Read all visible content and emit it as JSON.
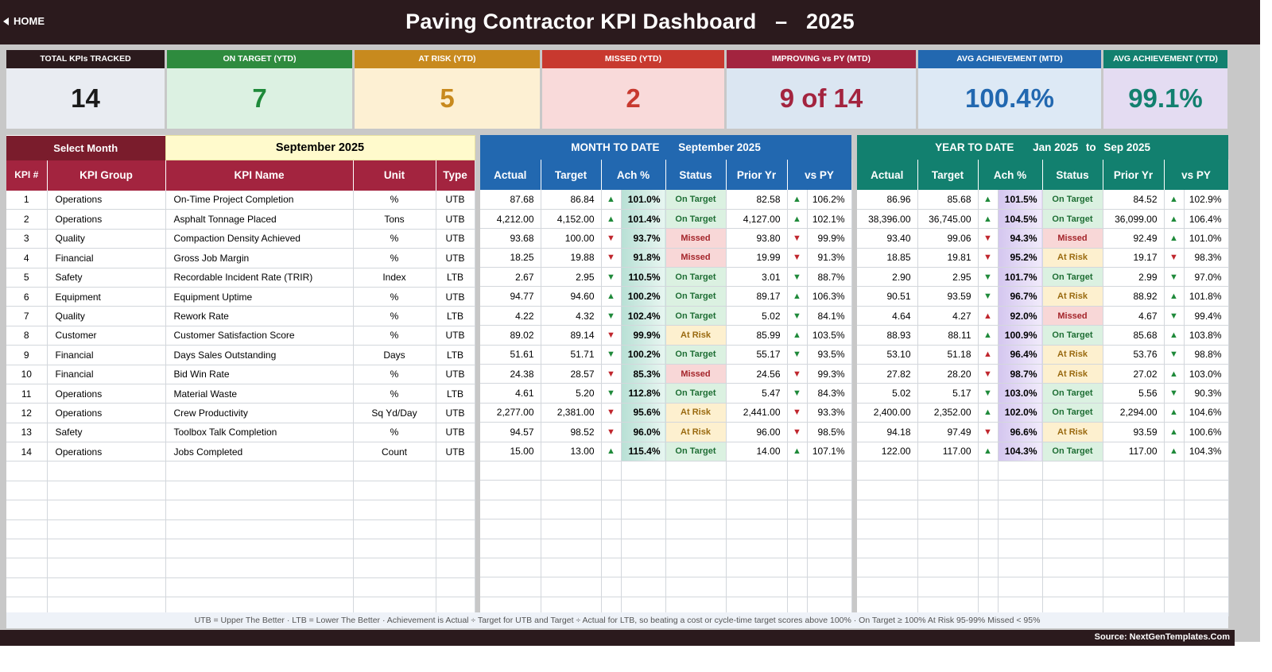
{
  "header": {
    "home_label": "HOME",
    "title": "Paving Contractor KPI Dashboard",
    "title_sep": "–",
    "year": "2025"
  },
  "cards": [
    {
      "label": "TOTAL KPIs TRACKED",
      "value": "14",
      "hdr_color": "#2b1a1d",
      "bg": "#e9ecf2",
      "fg": "#1a1a1a"
    },
    {
      "label": "ON TARGET (YTD)",
      "value": "7",
      "hdr_color": "#2e8b3e",
      "bg": "#dcf1e2",
      "fg": "#1f8a3a"
    },
    {
      "label": "AT RISK (YTD)",
      "value": "5",
      "hdr_color": "#c88a1e",
      "bg": "#fdf0d3",
      "fg": "#c88a1e"
    },
    {
      "label": "MISSED (YTD)",
      "value": "2",
      "hdr_color": "#c8392f",
      "bg": "#f9dada",
      "fg": "#c8392f"
    },
    {
      "label": "IMPROVING vs PY (MTD)",
      "value": "9 of 14",
      "hdr_color": "#a3243f",
      "bg": "#dbe6f2",
      "fg": "#a3243f"
    },
    {
      "label": "AVG ACHIEVEMENT (MTD)",
      "value": "100.4%",
      "hdr_color": "#2268b0",
      "bg": "#dde9f5",
      "fg": "#2268b0"
    },
    {
      "label": "AVG ACHIEVEMENT (YTD)",
      "value": "99.1%",
      "hdr_color": "#12806f",
      "bg": "#e4dcf2",
      "fg": "#12806f"
    }
  ],
  "left": {
    "select_label": "Select Month",
    "selected_month": "September 2025",
    "columns": [
      "KPI #",
      "KPI Group",
      "KPI Name",
      "Unit",
      "Type"
    ]
  },
  "mtd": {
    "title": "MONTH TO DATE",
    "period": "September 2025",
    "columns": [
      "Actual",
      "Target",
      "Ach %",
      "Status",
      "Prior Yr",
      "vs PY"
    ]
  },
  "ytd": {
    "title": "YEAR TO DATE",
    "period_from": "Jan 2025",
    "to": "to",
    "period_to": "Sep 2025",
    "columns": [
      "Actual",
      "Target",
      "Ach %",
      "Status",
      "Prior Yr",
      "vs PY"
    ]
  },
  "rows": [
    {
      "num": "1",
      "group": "Operations",
      "name": "On-Time Project Completion",
      "unit": "%",
      "type": "UTB",
      "mtd": {
        "actual": "87.68",
        "target": "86.84",
        "ach_dir": "up",
        "ach": "101.0%",
        "status": "On Target",
        "prior": "82.58",
        "vs_dir": "up",
        "vs": "106.2%"
      },
      "ytd": {
        "actual": "86.96",
        "target": "85.68",
        "ach_dir": "up",
        "ach": "101.5%",
        "status": "On Target",
        "prior": "84.52",
        "vs_dir": "up",
        "vs": "102.9%"
      }
    },
    {
      "num": "2",
      "group": "Operations",
      "name": "Asphalt Tonnage Placed",
      "unit": "Tons",
      "type": "UTB",
      "mtd": {
        "actual": "4,212.00",
        "target": "4,152.00",
        "ach_dir": "up",
        "ach": "101.4%",
        "status": "On Target",
        "prior": "4,127.00",
        "vs_dir": "up",
        "vs": "102.1%"
      },
      "ytd": {
        "actual": "38,396.00",
        "target": "36,745.00",
        "ach_dir": "up",
        "ach": "104.5%",
        "status": "On Target",
        "prior": "36,099.00",
        "vs_dir": "up",
        "vs": "106.4%"
      }
    },
    {
      "num": "3",
      "group": "Quality",
      "name": "Compaction Density Achieved",
      "unit": "%",
      "type": "UTB",
      "mtd": {
        "actual": "93.68",
        "target": "100.00",
        "ach_dir": "down",
        "ach": "93.7%",
        "status": "Missed",
        "prior": "93.80",
        "vs_dir": "down",
        "vs": "99.9%"
      },
      "ytd": {
        "actual": "93.40",
        "target": "99.06",
        "ach_dir": "down",
        "ach": "94.3%",
        "status": "Missed",
        "prior": "92.49",
        "vs_dir": "up",
        "vs": "101.0%"
      }
    },
    {
      "num": "4",
      "group": "Financial",
      "name": "Gross Job Margin",
      "unit": "%",
      "type": "UTB",
      "mtd": {
        "actual": "18.25",
        "target": "19.88",
        "ach_dir": "down",
        "ach": "91.8%",
        "status": "Missed",
        "prior": "19.99",
        "vs_dir": "down",
        "vs": "91.3%"
      },
      "ytd": {
        "actual": "18.85",
        "target": "19.81",
        "ach_dir": "down",
        "ach": "95.2%",
        "status": "At Risk",
        "prior": "19.17",
        "vs_dir": "down",
        "vs": "98.3%"
      }
    },
    {
      "num": "5",
      "group": "Safety",
      "name": "Recordable Incident Rate (TRIR)",
      "unit": "Index",
      "type": "LTB",
      "mtd": {
        "actual": "2.67",
        "target": "2.95",
        "ach_dir": "down-g",
        "ach": "110.5%",
        "status": "On Target",
        "prior": "3.01",
        "vs_dir": "down-g",
        "vs": "88.7%"
      },
      "ytd": {
        "actual": "2.90",
        "target": "2.95",
        "ach_dir": "down-g",
        "ach": "101.7%",
        "status": "On Target",
        "prior": "2.99",
        "vs_dir": "down-g",
        "vs": "97.0%"
      }
    },
    {
      "num": "6",
      "group": "Equipment",
      "name": "Equipment Uptime",
      "unit": "%",
      "type": "UTB",
      "mtd": {
        "actual": "94.77",
        "target": "94.60",
        "ach_dir": "up",
        "ach": "100.2%",
        "status": "On Target",
        "prior": "89.17",
        "vs_dir": "up",
        "vs": "106.3%"
      },
      "ytd": {
        "actual": "90.51",
        "target": "93.59",
        "ach_dir": "down-g",
        "ach": "96.7%",
        "status": "At Risk",
        "prior": "88.92",
        "vs_dir": "up",
        "vs": "101.8%"
      }
    },
    {
      "num": "7",
      "group": "Quality",
      "name": "Rework Rate",
      "unit": "%",
      "type": "LTB",
      "mtd": {
        "actual": "4.22",
        "target": "4.32",
        "ach_dir": "down-g",
        "ach": "102.4%",
        "status": "On Target",
        "prior": "5.02",
        "vs_dir": "down-g",
        "vs": "84.1%"
      },
      "ytd": {
        "actual": "4.64",
        "target": "4.27",
        "ach_dir": "up-r",
        "ach": "92.0%",
        "status": "Missed",
        "prior": "4.67",
        "vs_dir": "down-g",
        "vs": "99.4%"
      }
    },
    {
      "num": "8",
      "group": "Customer",
      "name": "Customer Satisfaction Score",
      "unit": "%",
      "type": "UTB",
      "mtd": {
        "actual": "89.02",
        "target": "89.14",
        "ach_dir": "down",
        "ach": "99.9%",
        "status": "At Risk",
        "prior": "85.99",
        "vs_dir": "up",
        "vs": "103.5%"
      },
      "ytd": {
        "actual": "88.93",
        "target": "88.11",
        "ach_dir": "up",
        "ach": "100.9%",
        "status": "On Target",
        "prior": "85.68",
        "vs_dir": "up",
        "vs": "103.8%"
      }
    },
    {
      "num": "9",
      "group": "Financial",
      "name": "Days Sales Outstanding",
      "unit": "Days",
      "type": "LTB",
      "mtd": {
        "actual": "51.61",
        "target": "51.71",
        "ach_dir": "down-g",
        "ach": "100.2%",
        "status": "On Target",
        "prior": "55.17",
        "vs_dir": "down-g",
        "vs": "93.5%"
      },
      "ytd": {
        "actual": "53.10",
        "target": "51.18",
        "ach_dir": "up-r",
        "ach": "96.4%",
        "status": "At Risk",
        "prior": "53.76",
        "vs_dir": "down-g",
        "vs": "98.8%"
      }
    },
    {
      "num": "10",
      "group": "Financial",
      "name": "Bid Win Rate",
      "unit": "%",
      "type": "UTB",
      "mtd": {
        "actual": "24.38",
        "target": "28.57",
        "ach_dir": "down",
        "ach": "85.3%",
        "status": "Missed",
        "prior": "24.56",
        "vs_dir": "down",
        "vs": "99.3%"
      },
      "ytd": {
        "actual": "27.82",
        "target": "28.20",
        "ach_dir": "down",
        "ach": "98.7%",
        "status": "At Risk",
        "prior": "27.02",
        "vs_dir": "up",
        "vs": "103.0%"
      }
    },
    {
      "num": "11",
      "group": "Operations",
      "name": "Material Waste",
      "unit": "%",
      "type": "LTB",
      "mtd": {
        "actual": "4.61",
        "target": "5.20",
        "ach_dir": "down-g",
        "ach": "112.8%",
        "status": "On Target",
        "prior": "5.47",
        "vs_dir": "down-g",
        "vs": "84.3%"
      },
      "ytd": {
        "actual": "5.02",
        "target": "5.17",
        "ach_dir": "down-g",
        "ach": "103.0%",
        "status": "On Target",
        "prior": "5.56",
        "vs_dir": "down-g",
        "vs": "90.3%"
      }
    },
    {
      "num": "12",
      "group": "Operations",
      "name": "Crew Productivity",
      "unit": "Sq Yd/Day",
      "type": "UTB",
      "mtd": {
        "actual": "2,277.00",
        "target": "2,381.00",
        "ach_dir": "down",
        "ach": "95.6%",
        "status": "At Risk",
        "prior": "2,441.00",
        "vs_dir": "down",
        "vs": "93.3%"
      },
      "ytd": {
        "actual": "2,400.00",
        "target": "2,352.00",
        "ach_dir": "up",
        "ach": "102.0%",
        "status": "On Target",
        "prior": "2,294.00",
        "vs_dir": "up",
        "vs": "104.6%"
      }
    },
    {
      "num": "13",
      "group": "Safety",
      "name": "Toolbox Talk Completion",
      "unit": "%",
      "type": "UTB",
      "mtd": {
        "actual": "94.57",
        "target": "98.52",
        "ach_dir": "down",
        "ach": "96.0%",
        "status": "At Risk",
        "prior": "96.00",
        "vs_dir": "down",
        "vs": "98.5%"
      },
      "ytd": {
        "actual": "94.18",
        "target": "97.49",
        "ach_dir": "down",
        "ach": "96.6%",
        "status": "At Risk",
        "prior": "93.59",
        "vs_dir": "up",
        "vs": "100.6%"
      }
    },
    {
      "num": "14",
      "group": "Operations",
      "name": "Jobs Completed",
      "unit": "Count",
      "type": "UTB",
      "mtd": {
        "actual": "15.00",
        "target": "13.00",
        "ach_dir": "up",
        "ach": "115.4%",
        "status": "On Target",
        "prior": "14.00",
        "vs_dir": "up",
        "vs": "107.1%"
      },
      "ytd": {
        "actual": "122.00",
        "target": "117.00",
        "ach_dir": "up",
        "ach": "104.3%",
        "status": "On Target",
        "prior": "117.00",
        "vs_dir": "up",
        "vs": "104.3%"
      }
    }
  ],
  "footer": {
    "note": "UTB = Upper The Better   ·   LTB = Lower The Better   ·   Achievement is Actual ÷ Target for UTB and Target ÷ Actual for LTB, so beating a cost or cycle-time target scores above 100%   ·   On Target ≥ 100%    At Risk 95-99%    Missed < 95%",
    "source": "Source: NextGenTemplates.Com"
  },
  "colors": {
    "dark": "#2b1a1d",
    "select_bg": "#7a1c2c",
    "kpi_header": "#a3243f",
    "mtd_header": "#2268b0",
    "ytd_header": "#12806f",
    "month_cell": "#fffacc"
  }
}
